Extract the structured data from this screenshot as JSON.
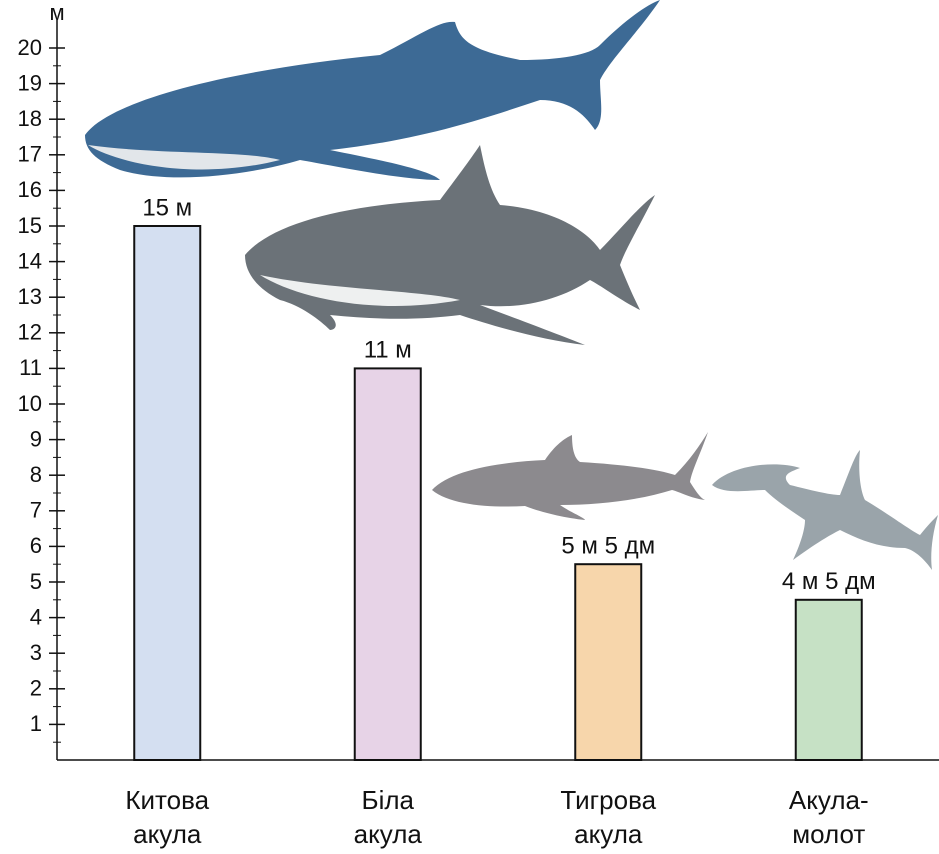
{
  "chart_data": {
    "type": "bar",
    "y_axis_label": "м",
    "categories": [
      [
        "Китова",
        "акула"
      ],
      [
        "Біла",
        "акула"
      ],
      [
        "Тигрова",
        "акула"
      ],
      [
        "Акула-",
        "молот"
      ]
    ],
    "values": [
      15,
      11,
      5.5,
      4.5
    ],
    "value_labels": [
      "15 м",
      "11 м",
      "5 м 5 дм",
      "4 м 5 дм"
    ],
    "colors": [
      "#d4dff1",
      "#e7d3e7",
      "#f7d6ab",
      "#c6e1c5"
    ],
    "ylim": [
      0,
      20
    ],
    "yticks": [
      1,
      2,
      3,
      4,
      5,
      6,
      7,
      8,
      9,
      10,
      11,
      12,
      13,
      14,
      15,
      16,
      17,
      18,
      19,
      20
    ],
    "minor_yticks": [
      0.5,
      1.5,
      2.5,
      3.5,
      4.5,
      5.5,
      6.5,
      7.5,
      8.5,
      9.5,
      10.5,
      11.5,
      12.5,
      13.5,
      14.5,
      15.5,
      16.5,
      17.5,
      18.5,
      19.5
    ]
  }
}
